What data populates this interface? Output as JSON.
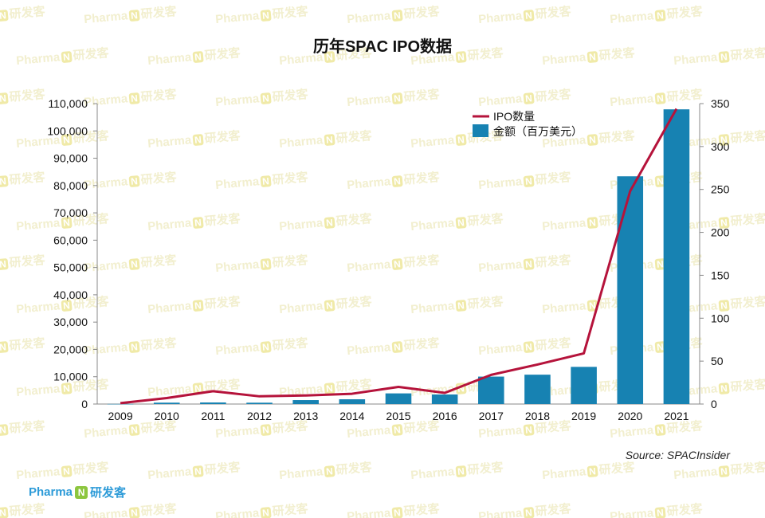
{
  "watermark": {
    "prefix": "Pharma",
    "mark": "N",
    "suffix": "研发客"
  },
  "brand": {
    "prefix": "Pharma",
    "mark": "N",
    "suffix": "研发客"
  },
  "source": "Source: SPACInsider",
  "chart_data": {
    "type": "bar",
    "title": "历年SPAC IPO数据",
    "categories": [
      "2009",
      "2010",
      "2011",
      "2012",
      "2013",
      "2014",
      "2015",
      "2016",
      "2017",
      "2018",
      "2019",
      "2020",
      "2021"
    ],
    "series": [
      {
        "name": "金额（百万美元）",
        "type": "bar",
        "axis": "left",
        "color": "#1782b2",
        "values": [
          36,
          503,
          575,
          491,
          1447,
          1750,
          3902,
          3499,
          10048,
          10752,
          13608,
          83380,
          107900
        ]
      },
      {
        "name": "IPO数量",
        "type": "line",
        "axis": "right",
        "color": "#b5133b",
        "values": [
          1,
          7,
          15,
          9,
          10,
          12,
          20,
          13,
          34,
          46,
          59,
          248,
          344
        ]
      }
    ],
    "yleft": {
      "min": 0,
      "max": 110000,
      "ticks": [
        "0",
        "10,000",
        "20,000",
        "30,000",
        "40,000",
        "50,000",
        "60,000",
        "70,000",
        "80,000",
        "90,000",
        "100,000",
        "110,000"
      ]
    },
    "yright": {
      "min": 0,
      "max": 350,
      "ticks": [
        "0",
        "50",
        "100",
        "150",
        "200",
        "250",
        "300",
        "350"
      ]
    },
    "grid": false,
    "legend": "top-right"
  }
}
